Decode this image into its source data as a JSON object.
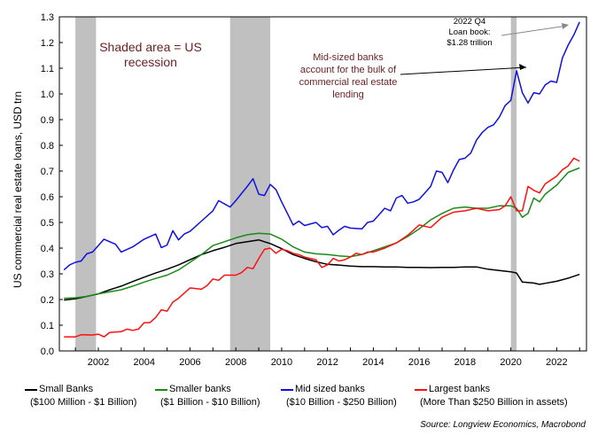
{
  "chart_data": {
    "type": "line",
    "ylabel": "US commercial real estate loans, USD trn",
    "ylim": [
      0,
      1.3
    ],
    "y_ticks": [
      "0.0",
      "0.1",
      "0.2",
      "0.3",
      "0.4",
      "0.5",
      "0.6",
      "0.7",
      "0.8",
      "0.9",
      "1.0",
      "1.1",
      "1.2",
      "1.3"
    ],
    "x_ticks": [
      "2002",
      "2004",
      "2006",
      "2008",
      "2010",
      "2012",
      "2014",
      "2016",
      "2018",
      "2020",
      "2022"
    ],
    "xlim": [
      2000.3,
      2023.3
    ],
    "recessions": [
      [
        2001.0,
        2001.9
      ],
      [
        2007.75,
        2009.5
      ],
      [
        2020.0,
        2020.25
      ]
    ],
    "annotations": {
      "recession_note": [
        "Shaded area = US",
        "recession"
      ],
      "midsize_note": [
        "Mid-sized banks",
        "account for the bulk of",
        "commercial real estate",
        "lending"
      ],
      "q4_note": [
        "2022 Q4",
        "Loan book:",
        "$1.28 trillion"
      ]
    },
    "series": [
      {
        "name": "Small Banks",
        "subtitle": "($100 Million - $1 Billion)",
        "color": "#000000",
        "points": [
          [
            2000.5,
            0.198
          ],
          [
            2001.0,
            0.203
          ],
          [
            2001.5,
            0.212
          ],
          [
            2002.0,
            0.222
          ],
          [
            2002.5,
            0.238
          ],
          [
            2003.0,
            0.252
          ],
          [
            2003.5,
            0.27
          ],
          [
            2004.0,
            0.287
          ],
          [
            2004.5,
            0.303
          ],
          [
            2005.0,
            0.318
          ],
          [
            2005.5,
            0.335
          ],
          [
            2006.0,
            0.355
          ],
          [
            2006.5,
            0.375
          ],
          [
            2007.0,
            0.39
          ],
          [
            2007.5,
            0.403
          ],
          [
            2008.0,
            0.418
          ],
          [
            2008.5,
            0.425
          ],
          [
            2009.0,
            0.432
          ],
          [
            2009.25,
            0.425
          ],
          [
            2009.5,
            0.418
          ],
          [
            2010.0,
            0.398
          ],
          [
            2010.5,
            0.375
          ],
          [
            2011.0,
            0.36
          ],
          [
            2011.5,
            0.347
          ],
          [
            2012.0,
            0.337
          ],
          [
            2012.5,
            0.334
          ],
          [
            2013.0,
            0.33
          ],
          [
            2013.5,
            0.328
          ],
          [
            2014.0,
            0.328
          ],
          [
            2014.5,
            0.327
          ],
          [
            2015.0,
            0.327
          ],
          [
            2015.5,
            0.325
          ],
          [
            2016.0,
            0.325
          ],
          [
            2016.5,
            0.324
          ],
          [
            2017.0,
            0.325
          ],
          [
            2017.5,
            0.325
          ],
          [
            2018.0,
            0.327
          ],
          [
            2018.5,
            0.327
          ],
          [
            2019.0,
            0.318
          ],
          [
            2019.5,
            0.313
          ],
          [
            2020.0,
            0.308
          ],
          [
            2020.25,
            0.303
          ],
          [
            2020.5,
            0.268
          ],
          [
            2021.0,
            0.264
          ],
          [
            2021.25,
            0.259
          ],
          [
            2021.5,
            0.263
          ],
          [
            2022.0,
            0.271
          ],
          [
            2022.5,
            0.283
          ],
          [
            2023.0,
            0.298
          ]
        ]
      },
      {
        "name": "Smaller banks",
        "subtitle": "($1 Billion - $10 Billion)",
        "color": "#1a8a1a",
        "points": [
          [
            2000.5,
            0.205
          ],
          [
            2001.0,
            0.207
          ],
          [
            2001.5,
            0.212
          ],
          [
            2002.0,
            0.222
          ],
          [
            2002.5,
            0.23
          ],
          [
            2003.0,
            0.238
          ],
          [
            2003.5,
            0.252
          ],
          [
            2004.0,
            0.268
          ],
          [
            2004.5,
            0.282
          ],
          [
            2005.0,
            0.295
          ],
          [
            2005.5,
            0.315
          ],
          [
            2006.0,
            0.345
          ],
          [
            2006.5,
            0.375
          ],
          [
            2007.0,
            0.41
          ],
          [
            2007.5,
            0.425
          ],
          [
            2008.0,
            0.44
          ],
          [
            2008.5,
            0.452
          ],
          [
            2009.0,
            0.458
          ],
          [
            2009.5,
            0.455
          ],
          [
            2010.0,
            0.435
          ],
          [
            2010.5,
            0.405
          ],
          [
            2011.0,
            0.385
          ],
          [
            2011.5,
            0.378
          ],
          [
            2012.0,
            0.375
          ],
          [
            2012.5,
            0.37
          ],
          [
            2013.0,
            0.367
          ],
          [
            2013.5,
            0.375
          ],
          [
            2014.0,
            0.39
          ],
          [
            2014.5,
            0.405
          ],
          [
            2015.0,
            0.42
          ],
          [
            2015.5,
            0.445
          ],
          [
            2016.0,
            0.475
          ],
          [
            2016.5,
            0.51
          ],
          [
            2017.0,
            0.535
          ],
          [
            2017.5,
            0.555
          ],
          [
            2018.0,
            0.56
          ],
          [
            2018.5,
            0.555
          ],
          [
            2019.0,
            0.555
          ],
          [
            2019.5,
            0.565
          ],
          [
            2020.0,
            0.565
          ],
          [
            2020.25,
            0.555
          ],
          [
            2020.5,
            0.52
          ],
          [
            2020.75,
            0.535
          ],
          [
            2021.0,
            0.595
          ],
          [
            2021.25,
            0.58
          ],
          [
            2021.5,
            0.61
          ],
          [
            2022.0,
            0.645
          ],
          [
            2022.5,
            0.695
          ],
          [
            2023.0,
            0.712
          ]
        ]
      },
      {
        "name": "Mid sized banks",
        "subtitle": "($10 Billion - $250 Billion)",
        "color": "#1010e0",
        "points": [
          [
            2000.5,
            0.315
          ],
          [
            2000.75,
            0.335
          ],
          [
            2001.0,
            0.345
          ],
          [
            2001.25,
            0.35
          ],
          [
            2001.5,
            0.378
          ],
          [
            2001.75,
            0.385
          ],
          [
            2002.0,
            0.41
          ],
          [
            2002.25,
            0.435
          ],
          [
            2002.5,
            0.425
          ],
          [
            2002.75,
            0.415
          ],
          [
            2003.0,
            0.385
          ],
          [
            2003.5,
            0.405
          ],
          [
            2004.0,
            0.435
          ],
          [
            2004.5,
            0.455
          ],
          [
            2004.75,
            0.402
          ],
          [
            2005.0,
            0.412
          ],
          [
            2005.25,
            0.468
          ],
          [
            2005.5,
            0.432
          ],
          [
            2005.75,
            0.455
          ],
          [
            2006.0,
            0.465
          ],
          [
            2006.5,
            0.505
          ],
          [
            2007.0,
            0.545
          ],
          [
            2007.25,
            0.585
          ],
          [
            2007.75,
            0.56
          ],
          [
            2008.0,
            0.585
          ],
          [
            2008.5,
            0.64
          ],
          [
            2008.75,
            0.67
          ],
          [
            2009.0,
            0.61
          ],
          [
            2009.25,
            0.605
          ],
          [
            2009.5,
            0.648
          ],
          [
            2009.75,
            0.628
          ],
          [
            2010.0,
            0.58
          ],
          [
            2010.25,
            0.535
          ],
          [
            2010.5,
            0.49
          ],
          [
            2010.75,
            0.505
          ],
          [
            2011.0,
            0.488
          ],
          [
            2011.5,
            0.5
          ],
          [
            2011.75,
            0.48
          ],
          [
            2012.0,
            0.485
          ],
          [
            2012.25,
            0.452
          ],
          [
            2012.5,
            0.47
          ],
          [
            2012.75,
            0.485
          ],
          [
            2013.0,
            0.478
          ],
          [
            2013.5,
            0.475
          ],
          [
            2013.75,
            0.5
          ],
          [
            2014.0,
            0.505
          ],
          [
            2014.5,
            0.555
          ],
          [
            2014.75,
            0.545
          ],
          [
            2015.0,
            0.595
          ],
          [
            2015.25,
            0.605
          ],
          [
            2015.5,
            0.575
          ],
          [
            2015.75,
            0.58
          ],
          [
            2016.0,
            0.59
          ],
          [
            2016.5,
            0.64
          ],
          [
            2016.75,
            0.7
          ],
          [
            2017.0,
            0.695
          ],
          [
            2017.25,
            0.655
          ],
          [
            2017.5,
            0.705
          ],
          [
            2017.75,
            0.745
          ],
          [
            2018.0,
            0.75
          ],
          [
            2018.25,
            0.77
          ],
          [
            2018.5,
            0.82
          ],
          [
            2018.75,
            0.85
          ],
          [
            2019.0,
            0.87
          ],
          [
            2019.25,
            0.88
          ],
          [
            2019.5,
            0.91
          ],
          [
            2019.75,
            0.955
          ],
          [
            2020.0,
            0.975
          ],
          [
            2020.25,
            1.09
          ],
          [
            2020.5,
            1.005
          ],
          [
            2020.75,
            0.965
          ],
          [
            2021.0,
            1.005
          ],
          [
            2021.25,
            1.0
          ],
          [
            2021.5,
            1.035
          ],
          [
            2021.75,
            1.05
          ],
          [
            2022.0,
            1.045
          ],
          [
            2022.25,
            1.14
          ],
          [
            2022.5,
            1.19
          ],
          [
            2022.75,
            1.23
          ],
          [
            2023.0,
            1.28
          ]
        ]
      },
      {
        "name": "Largest banks",
        "subtitle": "(More Than $250 Billion in assets)",
        "color": "#ff1010",
        "points": [
          [
            2000.5,
            0.055
          ],
          [
            2001.0,
            0.055
          ],
          [
            2001.25,
            0.063
          ],
          [
            2001.75,
            0.062
          ],
          [
            2002.0,
            0.065
          ],
          [
            2002.25,
            0.055
          ],
          [
            2002.5,
            0.072
          ],
          [
            2003.0,
            0.075
          ],
          [
            2003.25,
            0.085
          ],
          [
            2003.5,
            0.08
          ],
          [
            2003.75,
            0.085
          ],
          [
            2004.0,
            0.11
          ],
          [
            2004.25,
            0.11
          ],
          [
            2004.5,
            0.13
          ],
          [
            2004.75,
            0.16
          ],
          [
            2005.0,
            0.155
          ],
          [
            2005.25,
            0.19
          ],
          [
            2005.5,
            0.205
          ],
          [
            2005.75,
            0.225
          ],
          [
            2006.0,
            0.245
          ],
          [
            2006.5,
            0.24
          ],
          [
            2006.75,
            0.255
          ],
          [
            2007.0,
            0.28
          ],
          [
            2007.25,
            0.275
          ],
          [
            2007.5,
            0.295
          ],
          [
            2008.0,
            0.295
          ],
          [
            2008.25,
            0.305
          ],
          [
            2008.5,
            0.325
          ],
          [
            2008.75,
            0.32
          ],
          [
            2009.0,
            0.36
          ],
          [
            2009.25,
            0.395
          ],
          [
            2009.5,
            0.4
          ],
          [
            2009.75,
            0.38
          ],
          [
            2010.0,
            0.395
          ],
          [
            2010.25,
            0.39
          ],
          [
            2010.5,
            0.38
          ],
          [
            2010.75,
            0.375
          ],
          [
            2011.0,
            0.365
          ],
          [
            2011.5,
            0.355
          ],
          [
            2011.75,
            0.325
          ],
          [
            2012.0,
            0.335
          ],
          [
            2012.25,
            0.36
          ],
          [
            2012.5,
            0.35
          ],
          [
            2012.75,
            0.355
          ],
          [
            2013.0,
            0.365
          ],
          [
            2013.25,
            0.38
          ],
          [
            2013.5,
            0.375
          ],
          [
            2013.75,
            0.385
          ],
          [
            2014.0,
            0.385
          ],
          [
            2014.5,
            0.4
          ],
          [
            2014.75,
            0.41
          ],
          [
            2015.0,
            0.42
          ],
          [
            2015.5,
            0.45
          ],
          [
            2016.0,
            0.49
          ],
          [
            2016.5,
            0.48
          ],
          [
            2017.0,
            0.52
          ],
          [
            2017.5,
            0.54
          ],
          [
            2018.0,
            0.545
          ],
          [
            2018.5,
            0.555
          ],
          [
            2019.0,
            0.545
          ],
          [
            2019.5,
            0.55
          ],
          [
            2019.75,
            0.565
          ],
          [
            2020.0,
            0.6
          ],
          [
            2020.25,
            0.545
          ],
          [
            2020.5,
            0.545
          ],
          [
            2020.75,
            0.64
          ],
          [
            2021.0,
            0.625
          ],
          [
            2021.25,
            0.615
          ],
          [
            2021.5,
            0.65
          ],
          [
            2022.0,
            0.68
          ],
          [
            2022.25,
            0.705
          ],
          [
            2022.5,
            0.72
          ],
          [
            2022.75,
            0.75
          ],
          [
            2023.0,
            0.738
          ]
        ]
      }
    ],
    "source": "Source: Longview Economics, Macrobond"
  }
}
